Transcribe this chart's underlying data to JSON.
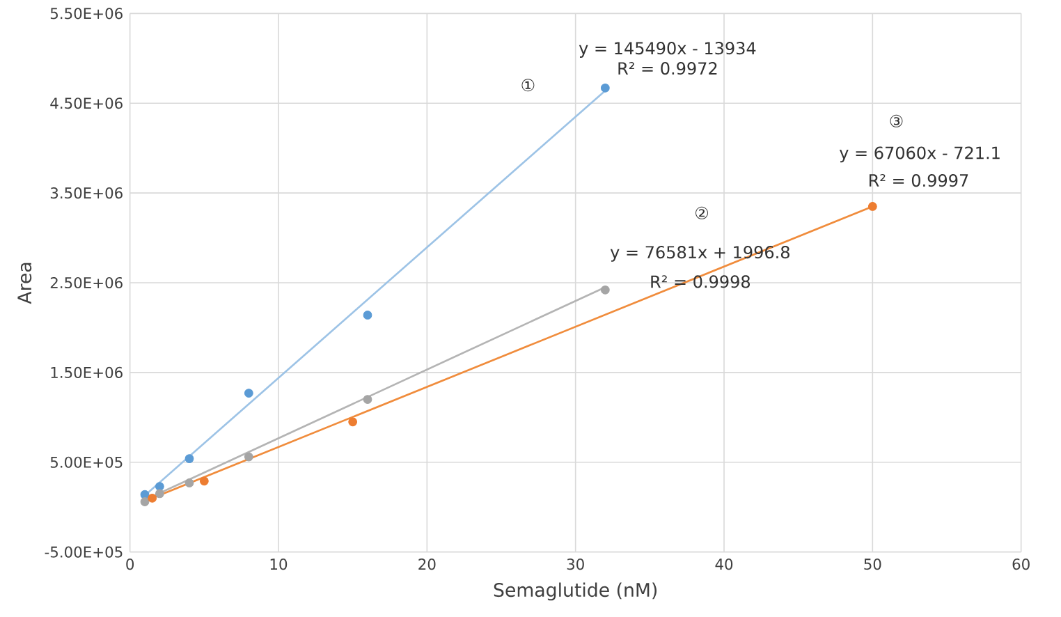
{
  "chart_data": {
    "type": "scatter",
    "xlabel": "Semaglutide (nM)",
    "ylabel": "Area",
    "xlim": [
      0,
      60
    ],
    "xticks": [
      0,
      10,
      20,
      30,
      40,
      50,
      60
    ],
    "ylim": [
      -500000,
      5500000
    ],
    "yticks": [
      {
        "value": -500000,
        "label": "-5.00E+05"
      },
      {
        "value": 500000,
        "label": "5.00E+05"
      },
      {
        "value": 1500000,
        "label": "1.50E+06"
      },
      {
        "value": 2500000,
        "label": "2.50E+06"
      },
      {
        "value": 3500000,
        "label": "3.50E+06"
      },
      {
        "value": 4500000,
        "label": "4.50E+06"
      },
      {
        "value": 5500000,
        "label": "5.50E+06"
      }
    ],
    "grid": true,
    "series": [
      {
        "type": "line",
        "marker": "none",
        "color": "#9dc3e6",
        "x": [
          1,
          32
        ],
        "values": [
          130000,
          4640000
        ]
      },
      {
        "type": "line",
        "marker": "none",
        "color": "#b4b4b4",
        "x": [
          1,
          32
        ],
        "values": [
          80000,
          2450000
        ]
      },
      {
        "type": "line",
        "marker": "none",
        "color": "#f08c3c",
        "x": [
          1.5,
          50
        ],
        "values": [
          100000,
          3350000
        ]
      },
      {
        "marker": "circle",
        "color": "#5b9bd5",
        "x": [
          1,
          2,
          4,
          8,
          16,
          32
        ],
        "values": [
          140000,
          230000,
          540000,
          1270000,
          2140000,
          4670000
        ]
      },
      {
        "marker": "circle",
        "color": "#a5a5a5",
        "x": [
          1,
          2,
          4,
          8,
          16,
          32
        ],
        "values": [
          60000,
          150000,
          270000,
          560000,
          1200000,
          2420000
        ]
      },
      {
        "marker": "circle",
        "color": "#ed7d31",
        "x": [
          1.5,
          5,
          15,
          50
        ],
        "values": [
          100000,
          290000,
          950000,
          3350000
        ]
      }
    ],
    "annotations": [
      "y = 145490x - 13934",
      "R² = 0.9972",
      "①",
      "y = 76581x + 1996.8",
      "R² = 0.9998",
      "②",
      "y = 67060x - 721.1",
      "R² = 0.9997",
      "③"
    ]
  }
}
